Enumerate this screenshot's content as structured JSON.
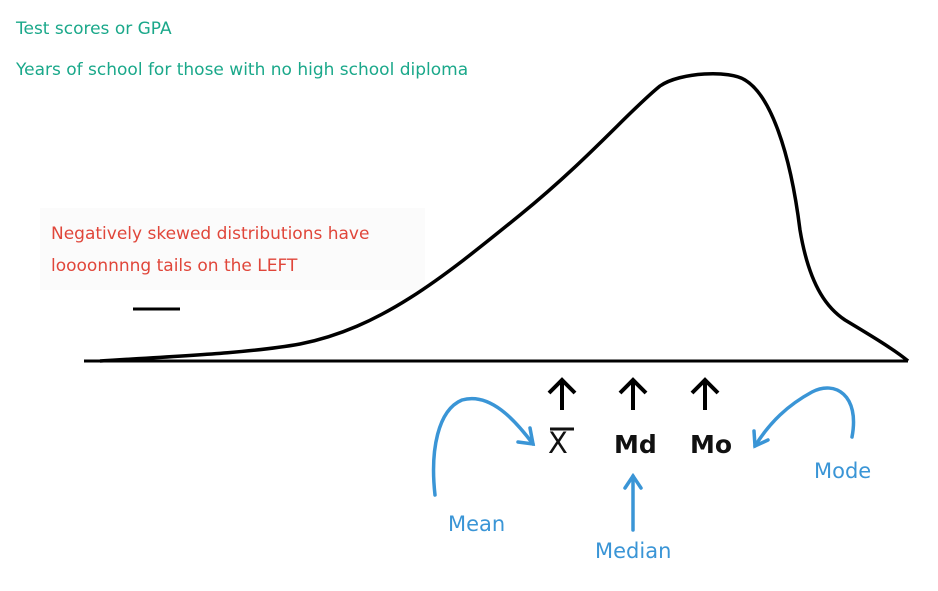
{
  "notes": {
    "line1": "Test scores or GPA",
    "line2": "Years of school for those with no high school diploma",
    "skew_line1": "Negatively skewed distributions have",
    "skew_line2": "loooonnnng tails on the LEFT"
  },
  "symbols": {
    "mean": "X",
    "median": "Md",
    "mode": "Mo"
  },
  "labels": {
    "mean": "Mean",
    "median": "Median",
    "mode": "Mode"
  },
  "colors": {
    "green_text": "#1aa88a",
    "red_text": "#e0463a",
    "blue_annotation": "#3a95d6",
    "curve": "#000000"
  }
}
